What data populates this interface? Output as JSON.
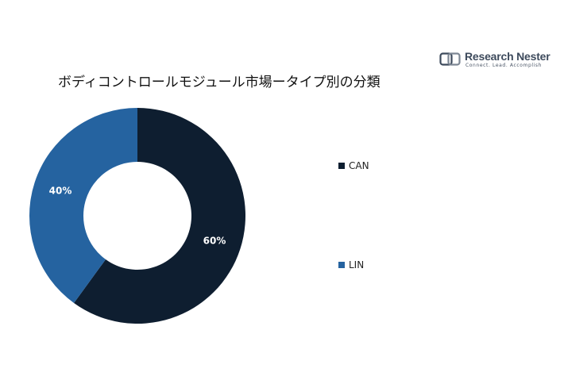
{
  "logo": {
    "name": "Research Nester",
    "tagline": "Connect. Lead. Accomplish"
  },
  "chart_data": {
    "type": "pie",
    "title": "ボディコントロールモジュール市場ータイプ別の分類",
    "donut": true,
    "categories": [
      "CAN",
      "LIN"
    ],
    "values": [
      60,
      40
    ],
    "data_labels": [
      "60%",
      "40%"
    ],
    "colors": [
      "#0e1e30",
      "#2563a0"
    ],
    "legend_position": "right"
  }
}
